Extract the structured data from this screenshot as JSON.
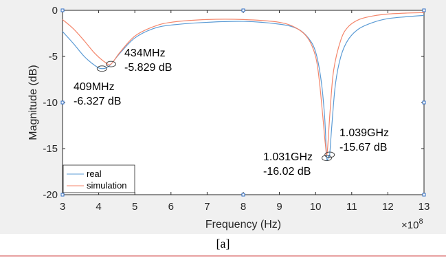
{
  "chart_data": {
    "type": "line",
    "xlabel": "Frequency (Hz)",
    "ylabel": "Magnitude (dB)",
    "x_exponent_label": "×10",
    "x_exponent_power": "8",
    "xlim": [
      3,
      13
    ],
    "ylim": [
      -20,
      0
    ],
    "xticks": [
      3,
      4,
      5,
      6,
      7,
      8,
      9,
      10,
      11,
      12,
      13
    ],
    "yticks": [
      0,
      -5,
      -10,
      -15,
      -20
    ],
    "x_unit_note": "x values in units of 1e8 Hz",
    "grid": false,
    "legend_position": "bottom-left",
    "series": [
      {
        "name": "real",
        "color": "#5b9bd5",
        "x": [
          3.0,
          3.3,
          3.6,
          3.9,
          4.09,
          4.3,
          4.6,
          5.0,
          5.5,
          6.0,
          7.0,
          8.0,
          9.0,
          9.5,
          9.8,
          10.0,
          10.15,
          10.25,
          10.31,
          10.36,
          10.39,
          10.45,
          10.55,
          10.7,
          10.9,
          11.2,
          11.6,
          12.0,
          12.5,
          13.0
        ],
        "y": [
          -2.3,
          -3.6,
          -5.0,
          -6.0,
          -6.327,
          -6.0,
          -4.6,
          -3.0,
          -2.0,
          -1.6,
          -1.3,
          -1.2,
          -1.5,
          -2.0,
          -3.0,
          -4.5,
          -7.5,
          -11.5,
          -16.02,
          -15.8,
          -15.67,
          -12.5,
          -8.0,
          -5.0,
          -3.2,
          -2.0,
          -1.3,
          -0.9,
          -0.7,
          -0.55
        ]
      },
      {
        "name": "simulation",
        "color": "#f4866b",
        "x": [
          3.0,
          3.3,
          3.6,
          3.9,
          4.2,
          4.34,
          4.6,
          5.0,
          5.5,
          6.0,
          7.0,
          8.0,
          9.0,
          9.5,
          9.8,
          10.0,
          10.1,
          10.2,
          10.27,
          10.32,
          10.4,
          10.5,
          10.7,
          10.9,
          11.2,
          11.6,
          12.0,
          12.5,
          13.0
        ],
        "y": [
          -1.0,
          -2.0,
          -3.3,
          -4.7,
          -5.7,
          -5.829,
          -4.5,
          -2.8,
          -1.8,
          -1.3,
          -1.0,
          -1.0,
          -1.3,
          -2.0,
          -3.1,
          -5.0,
          -7.5,
          -11.5,
          -14.5,
          -15.5,
          -11.0,
          -6.5,
          -3.2,
          -1.8,
          -1.0,
          -0.6,
          -0.4,
          -0.3,
          -0.25
        ]
      }
    ],
    "annotations": [
      {
        "line1": "409MHz",
        "line2": "-6.327 dB",
        "x": 4.09,
        "y": -6.327,
        "series": "real"
      },
      {
        "line1": "434MHz",
        "line2": "-5.829 dB",
        "x": 4.34,
        "y": -5.829,
        "series": "simulation"
      },
      {
        "line1": "1.031GHz",
        "line2": "-16.02 dB",
        "x": 10.31,
        "y": -16.02,
        "series": "real"
      },
      {
        "line1": "1.039GHz",
        "line2": "-15.67 dB",
        "x": 10.39,
        "y": -15.67,
        "series": "real"
      }
    ]
  },
  "caption": "[a]"
}
